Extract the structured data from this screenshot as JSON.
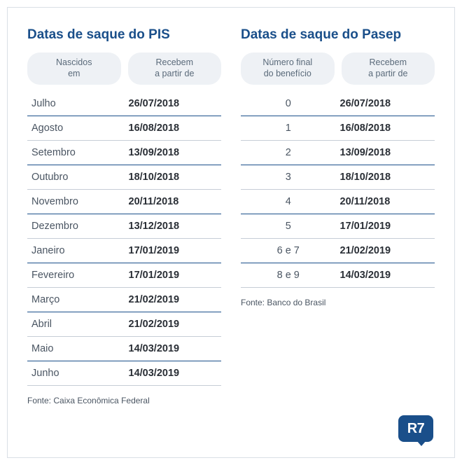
{
  "colors": {
    "title": "#1a4f8a",
    "row_divider_strong": "#1a4f8a",
    "row_divider_weak": "#c6cdd6",
    "header_pill_bg": "#eef1f5",
    "header_pill_text": "#5a6a7a",
    "cell_left_text": "#4a5562",
    "cell_right_text": "#2a2f36",
    "border": "#d9dfe6",
    "logo_bg": "#1a4f8a",
    "logo_text": "#ffffff"
  },
  "logo": {
    "text": "R7"
  },
  "pis": {
    "title": "Datas de saque do PIS",
    "header_left_l1": "Nascidos",
    "header_left_l2": "em",
    "header_right_l1": "Recebem",
    "header_right_l2": "a partir de",
    "rows": [
      {
        "left": "Julho",
        "right": "26/07/2018",
        "strong": true
      },
      {
        "left": "Agosto",
        "right": "16/08/2018",
        "strong": false
      },
      {
        "left": "Setembro",
        "right": "13/09/2018",
        "strong": true
      },
      {
        "left": "Outubro",
        "right": "18/10/2018",
        "strong": false
      },
      {
        "left": "Novembro",
        "right": "20/11/2018",
        "strong": true
      },
      {
        "left": "Dezembro",
        "right": "13/12/2018",
        "strong": false
      },
      {
        "left": "Janeiro",
        "right": "17/01/2019",
        "strong": true
      },
      {
        "left": "Fevereiro",
        "right": "17/01/2019",
        "strong": false
      },
      {
        "left": "Março",
        "right": "21/02/2019",
        "strong": true
      },
      {
        "left": "Abril",
        "right": "21/02/2019",
        "strong": false
      },
      {
        "left": "Maio",
        "right": "14/03/2019",
        "strong": true
      },
      {
        "left": "Junho",
        "right": "14/03/2019",
        "strong": false
      }
    ],
    "source": "Fonte: Caixa Econômica Federal"
  },
  "pasep": {
    "title": "Datas de saque do Pasep",
    "header_left_l1": "Número final",
    "header_left_l2": "do benefício",
    "header_right_l1": "Recebem",
    "header_right_l2": "a partir de",
    "rows": [
      {
        "left": "0",
        "right": "26/07/2018",
        "strong": true
      },
      {
        "left": "1",
        "right": "16/08/2018",
        "strong": false
      },
      {
        "left": "2",
        "right": "13/09/2018",
        "strong": true
      },
      {
        "left": "3",
        "right": "18/10/2018",
        "strong": false
      },
      {
        "left": "4",
        "right": "20/11/2018",
        "strong": true
      },
      {
        "left": "5",
        "right": "17/01/2019",
        "strong": false
      },
      {
        "left": "6 e 7",
        "right": "21/02/2019",
        "strong": true
      },
      {
        "left": "8 e 9",
        "right": "14/03/2019",
        "strong": false
      }
    ],
    "source": "Fonte: Banco do Brasil"
  }
}
